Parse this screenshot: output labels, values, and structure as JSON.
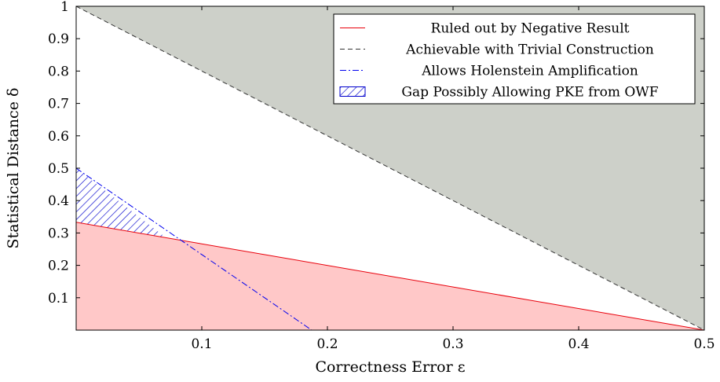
{
  "chart_data": {
    "type": "line",
    "xlabel": "Correctness Error ε",
    "ylabel": "Statistical Distance δ",
    "xlim": [
      0,
      0.5
    ],
    "ylim": [
      0,
      1
    ],
    "x_ticks": [
      "0.1",
      "0.2",
      "0.3",
      "0.4",
      "0.5"
    ],
    "y_ticks": [
      "0.1",
      "0.2",
      "0.3",
      "0.4",
      "0.5",
      "0.6",
      "0.7",
      "0.8",
      "0.9",
      "1"
    ],
    "grid": false,
    "legend_position": "top-right",
    "series": [
      {
        "name": "Ruled out by Negative Result",
        "style": "solid",
        "color": "#e8000b",
        "fill": "#ffc8c8",
        "points": [
          [
            0,
            0.333
          ],
          [
            0.5,
            0
          ]
        ]
      },
      {
        "name": "Achievable with Trivial Construction",
        "style": "dashed",
        "color": "#333333",
        "fill": "#cdd0c9",
        "points": [
          [
            0,
            1
          ],
          [
            0.5,
            0
          ]
        ]
      },
      {
        "name": "Allows Holenstein Amplification",
        "style": "dashdot",
        "color": "#0000ee",
        "points": [
          [
            0,
            0.5
          ],
          [
            0.1875,
            0
          ]
        ]
      },
      {
        "name": "Gap Possibly Allowing PKE from OWF",
        "style": "hatched-region",
        "color": "#0000cc",
        "points": [
          [
            0,
            0.333
          ],
          [
            0,
            0.5
          ],
          [
            0.0714,
            0.2857
          ]
        ]
      }
    ]
  }
}
